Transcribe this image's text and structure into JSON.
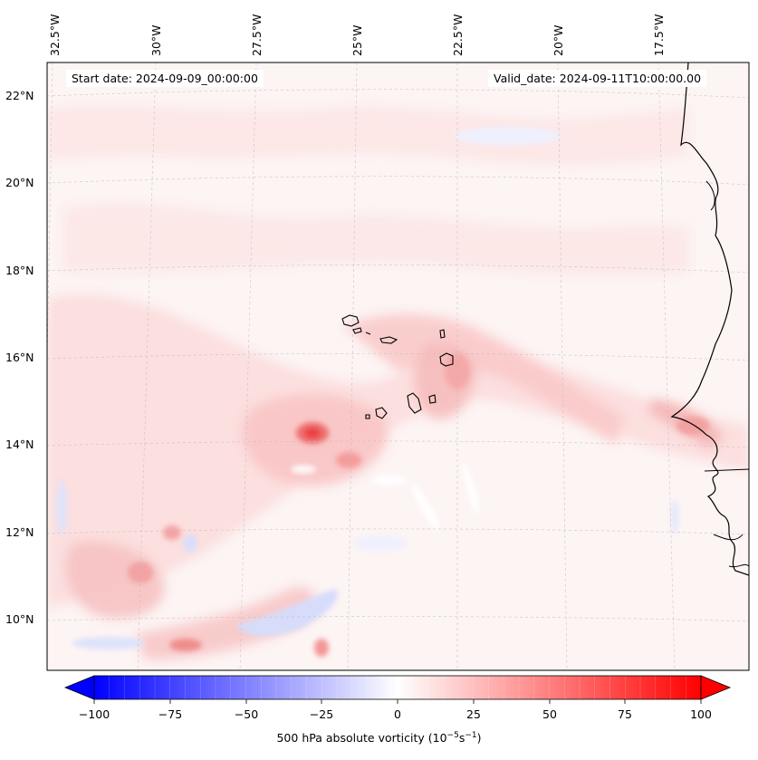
{
  "map": {
    "title_left": "Start date: 2024-09-09_00:00:00",
    "title_right": "Valid_date: 2024-09-11T10:00:00.00",
    "field": "500 hPa absolute vorticity",
    "region": "Eastern tropical Atlantic, Cape Verde islands and West African coast"
  },
  "longitude_labels": [
    "32.5°W",
    "30°W",
    "27.5°W",
    "25°W",
    "22.5°W",
    "20°W",
    "17.5°W"
  ],
  "latitude_labels": [
    "22°N",
    "20°N",
    "18°N",
    "16°N",
    "14°N",
    "12°N",
    "10°N"
  ],
  "colorbar": {
    "label": "500 hPa absolute vorticity",
    "unit_base": "10",
    "unit_exp1": "−5",
    "unit_mid": "s",
    "unit_exp2": "−1",
    "ticks": [
      "−100",
      "−75",
      "−50",
      "−25",
      "0",
      "25",
      "50",
      "75",
      "100"
    ],
    "min_color": "#0000ff",
    "mid_color": "#ffffff",
    "max_color": "#ff0000",
    "extend": "both"
  }
}
